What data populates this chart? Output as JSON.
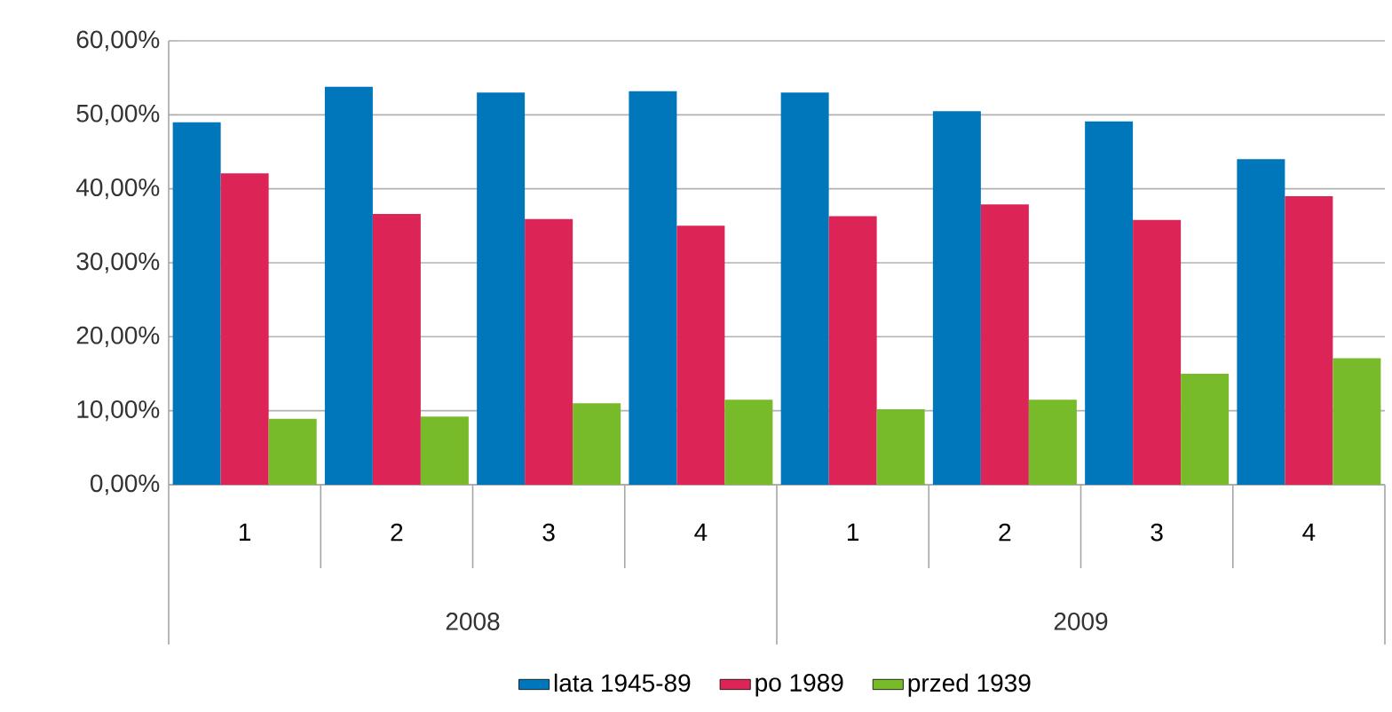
{
  "chart_data": {
    "type": "bar",
    "categories": [
      "1",
      "2",
      "3",
      "4",
      "1",
      "2",
      "3",
      "4"
    ],
    "annotations": [
      "2008",
      "2009"
    ],
    "series": [
      {
        "name": "lata 1945-89",
        "color": "#0077bb",
        "values": [
          49.0,
          53.8,
          53.0,
          53.2,
          53.0,
          50.5,
          49.1,
          44.0
        ]
      },
      {
        "name": "po 1989",
        "color": "#dc2456",
        "values": [
          42.1,
          36.6,
          35.9,
          35.0,
          36.3,
          37.9,
          35.8,
          39.0
        ]
      },
      {
        "name": "przed 1939",
        "color": "#77bb2a",
        "values": [
          8.9,
          9.2,
          11.0,
          11.5,
          10.2,
          11.5,
          15.0,
          17.1
        ]
      }
    ],
    "ylim": [
      0,
      60
    ],
    "yticks": [
      {
        "value": 0,
        "label": "0,00%"
      },
      {
        "value": 10,
        "label": "10,00%"
      },
      {
        "value": 20,
        "label": "20,00%"
      },
      {
        "value": 30,
        "label": "30,00%"
      },
      {
        "value": 40,
        "label": "40,00%"
      },
      {
        "value": 50,
        "label": "50,00%"
      },
      {
        "value": 60,
        "label": "60,00%"
      }
    ],
    "grid": "y",
    "legend": "bottom"
  }
}
